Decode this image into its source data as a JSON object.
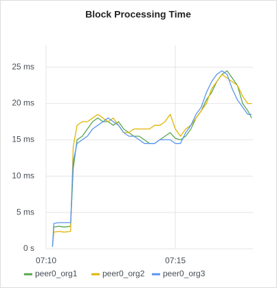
{
  "chart_data": {
    "type": "line",
    "title": "Block Processing Time",
    "x": [
      430.25,
      430.3,
      430.5,
      430.7,
      430.95,
      431.05,
      431.2,
      431.4,
      431.6,
      431.8,
      432.0,
      432.2,
      432.4,
      432.6,
      432.8,
      433.0,
      433.2,
      433.4,
      433.6,
      433.8,
      434.0,
      434.2,
      434.4,
      434.6,
      434.8,
      435.0,
      435.2,
      435.4,
      435.6,
      435.8,
      436.0,
      436.2,
      436.4,
      436.6,
      436.8,
      437.0,
      437.2,
      437.4,
      437.6,
      437.8,
      437.95
    ],
    "series": [
      {
        "name": "peer0_org1",
        "color": "#56a64b",
        "values": [
          0.3,
          3.0,
          3.1,
          3.0,
          3.1,
          11,
          15,
          15.5,
          16.5,
          17.5,
          18,
          17.5,
          17.5,
          17,
          17.5,
          16.5,
          16,
          15.5,
          15.5,
          15,
          14.5,
          14.5,
          15,
          15.5,
          16,
          15.2,
          15,
          15.5,
          16.5,
          18,
          19,
          20.5,
          21.5,
          23,
          24,
          24.5,
          23.5,
          22.5,
          20,
          19,
          18
        ]
      },
      {
        "name": "peer0_org2",
        "color": "#e0b400",
        "values": [
          0.3,
          2.3,
          2.4,
          2.3,
          2.4,
          14,
          17,
          17.5,
          17.5,
          18,
          18.5,
          18,
          17.5,
          18,
          17,
          16,
          16,
          16.5,
          16.5,
          16.5,
          16.5,
          17,
          17,
          17.5,
          18.5,
          16.5,
          15.5,
          16.5,
          17,
          18,
          19,
          20,
          22,
          23,
          24,
          23.5,
          23,
          22.5,
          21,
          20,
          20
        ]
      },
      {
        "name": "peer0_org3",
        "color": "#5794f2",
        "values": [
          0.3,
          3.5,
          3.6,
          3.6,
          3.6,
          12,
          14.5,
          15,
          15.5,
          16.5,
          17,
          17.5,
          18,
          17.5,
          17,
          16,
          15.5,
          15.5,
          15,
          14.5,
          14.5,
          14.5,
          15,
          15,
          15,
          14.5,
          14.5,
          16,
          17,
          18.5,
          19.5,
          21.5,
          23,
          24,
          24.5,
          24,
          22,
          20.5,
          19.5,
          18.5,
          18.5
        ]
      }
    ],
    "xlim": [
      430,
      438
    ],
    "xticks": [
      {
        "value": 430,
        "label": "07:10"
      },
      {
        "value": 435,
        "label": "07:15"
      }
    ],
    "ylim": [
      0,
      28
    ],
    "yticks": [
      {
        "value": 0,
        "label": "0 s"
      },
      {
        "value": 5,
        "label": "5 ms"
      },
      {
        "value": 10,
        "label": "10 ms"
      },
      {
        "value": 15,
        "label": "15 ms"
      },
      {
        "value": 20,
        "label": "20 ms"
      },
      {
        "value": 25,
        "label": "25 ms"
      }
    ],
    "grid": true,
    "legend": "bottom"
  }
}
